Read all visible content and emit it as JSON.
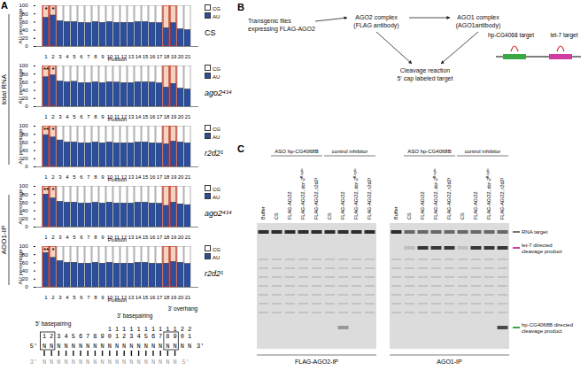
{
  "panel_labels": [
    "A",
    "B",
    "C"
  ],
  "chart_data": [
    {
      "type": "bar",
      "title": "CS",
      "stacked": true,
      "legend": "top-right",
      "x_label": "Position",
      "y_label": "AU percentage",
      "categories": [
        1,
        2,
        3,
        4,
        5,
        6,
        7,
        8,
        9,
        10,
        11,
        12,
        13,
        14,
        15,
        16,
        17,
        18,
        19,
        20,
        21
      ],
      "ylim": [
        0,
        100
      ],
      "yticks": [
        0,
        20,
        40,
        60,
        80,
        100
      ],
      "series": [
        {
          "name": "CG",
          "color": "#ffffff",
          "values": [
            30,
            24,
            38,
            40,
            40,
            42,
            43,
            40,
            42,
            40,
            42,
            42,
            42,
            40,
            40,
            42,
            43,
            55,
            43,
            58,
            60
          ]
        },
        {
          "name": "AU",
          "color": "#2b4f9e",
          "values": [
            70,
            76,
            62,
            60,
            60,
            58,
            57,
            60,
            58,
            60,
            58,
            58,
            58,
            60,
            60,
            58,
            57,
            45,
            57,
            42,
            40
          ]
        }
      ],
      "annotations": [
        {
          "x": 1,
          "y": 92,
          "text": "*"
        },
        {
          "x": 2,
          "y": 92,
          "text": "*"
        }
      ]
    },
    {
      "type": "bar",
      "title": "ago2⁴¹⁴",
      "stacked": true,
      "legend": "top-right",
      "x_label": "Position",
      "y_label": "AU percentage",
      "categories": [
        1,
        2,
        3,
        4,
        5,
        6,
        7,
        8,
        9,
        10,
        11,
        12,
        13,
        14,
        15,
        16,
        17,
        18,
        19,
        20,
        21
      ],
      "ylim": [
        0,
        100
      ],
      "yticks": [
        0,
        20,
        40,
        60,
        80,
        100
      ],
      "series": [
        {
          "name": "CG",
          "color": "#ffffff",
          "values": [
            28,
            23,
            38,
            40,
            39,
            42,
            42,
            40,
            42,
            40,
            41,
            42,
            42,
            40,
            40,
            41,
            43,
            53,
            44,
            56,
            58
          ]
        },
        {
          "name": "AU",
          "color": "#2b4f9e",
          "values": [
            72,
            77,
            62,
            60,
            61,
            58,
            58,
            60,
            58,
            60,
            59,
            58,
            58,
            60,
            60,
            59,
            57,
            47,
            56,
            44,
            42
          ]
        }
      ],
      "annotations": [
        {
          "x": 1,
          "y": 92,
          "text": "**"
        },
        {
          "x": 2,
          "y": 92,
          "text": "*"
        }
      ]
    },
    {
      "type": "bar",
      "title": "r2d2¹",
      "stacked": true,
      "legend": "top-right",
      "x_label": "Position",
      "y_label": "AU percentage",
      "categories": [
        1,
        2,
        3,
        4,
        5,
        6,
        7,
        8,
        9,
        10,
        11,
        12,
        13,
        14,
        15,
        16,
        17,
        18,
        19,
        20,
        21
      ],
      "ylim": [
        0,
        100
      ],
      "yticks": [
        0,
        20,
        40,
        60,
        80,
        100
      ],
      "series": [
        {
          "name": "CG",
          "color": "#ffffff",
          "values": [
            22,
            28,
            35,
            40,
            40,
            42,
            42,
            40,
            42,
            40,
            42,
            42,
            42,
            40,
            40,
            42,
            43,
            45,
            38,
            40,
            42
          ]
        },
        {
          "name": "AU",
          "color": "#2b4f9e",
          "values": [
            78,
            72,
            65,
            60,
            60,
            58,
            58,
            60,
            58,
            60,
            58,
            58,
            58,
            60,
            60,
            58,
            57,
            55,
            62,
            60,
            58
          ]
        }
      ],
      "annotations": [
        {
          "x": 1,
          "y": 92,
          "text": "**"
        },
        {
          "x": 2,
          "y": 92,
          "text": "*"
        }
      ]
    },
    {
      "type": "bar",
      "title": "ago2⁴¹⁴",
      "stacked": true,
      "legend": "top-right",
      "x_label": "Position",
      "y_label": "AU percentage",
      "categories": [
        1,
        2,
        3,
        4,
        5,
        6,
        7,
        8,
        9,
        10,
        11,
        12,
        13,
        14,
        15,
        16,
        17,
        18,
        19,
        20,
        21
      ],
      "ylim": [
        0,
        100
      ],
      "yticks": [
        0,
        20,
        40,
        60,
        80,
        100
      ],
      "series": [
        {
          "name": "CG",
          "color": "#ffffff",
          "values": [
            20,
            30,
            38,
            40,
            40,
            42,
            42,
            40,
            42,
            40,
            42,
            42,
            42,
            40,
            40,
            42,
            43,
            48,
            40,
            44,
            46
          ]
        },
        {
          "name": "AU",
          "color": "#2b4f9e",
          "values": [
            80,
            70,
            62,
            60,
            60,
            58,
            58,
            60,
            58,
            60,
            58,
            58,
            58,
            60,
            60,
            58,
            57,
            52,
            60,
            56,
            54
          ]
        }
      ],
      "annotations": [
        {
          "x": 1,
          "y": 92,
          "text": "**"
        },
        {
          "x": 2,
          "y": 92,
          "text": "*"
        }
      ]
    },
    {
      "type": "bar",
      "title": "r2d2¹",
      "stacked": true,
      "legend": "top-right",
      "x_label": "Position",
      "y_label": "AU percentage",
      "categories": [
        1,
        2,
        3,
        4,
        5,
        6,
        7,
        8,
        9,
        10,
        11,
        12,
        13,
        14,
        15,
        16,
        17,
        18,
        19,
        20,
        21
      ],
      "ylim": [
        0,
        100
      ],
      "yticks": [
        0,
        20,
        40,
        60,
        80,
        100
      ],
      "series": [
        {
          "name": "CG",
          "color": "#ffffff",
          "values": [
            16,
            28,
            36,
            40,
            40,
            42,
            42,
            40,
            42,
            40,
            42,
            42,
            42,
            40,
            40,
            42,
            43,
            42,
            38,
            40,
            43
          ]
        },
        {
          "name": "AU",
          "color": "#2b4f9e",
          "values": [
            84,
            72,
            64,
            60,
            60,
            58,
            58,
            60,
            58,
            60,
            58,
            58,
            58,
            60,
            60,
            58,
            57,
            58,
            62,
            60,
            57
          ]
        }
      ],
      "annotations": [
        {
          "x": 1,
          "y": 92,
          "text": "**"
        },
        {
          "x": 2,
          "y": 92,
          "text": "*"
        }
      ]
    }
  ],
  "row_groups": [
    {
      "label": "total RNA",
      "count": 3
    },
    {
      "label": "AGO1-IP",
      "count": 2
    }
  ],
  "highlighted_positions": [
    1,
    2,
    18,
    19
  ],
  "schematic": {
    "five_prime_label": "5' basepairing",
    "three_prime_label": "3' basepairing",
    "overhang_label": "3' overhang",
    "five_prime": "5'",
    "three_prime": "3'",
    "strand": "NNNNNNNNNNNNNNNNNNNNN",
    "complement": "NNNNNNNNNNNNNNNNNNN"
  },
  "panel_b": {
    "nodes": [
      {
        "lines": [
          "Transgenic flies",
          "expressing FLAG-AGO2"
        ]
      },
      {
        "lines": [
          "AGO2 complex",
          "(FLAG antibody)"
        ]
      },
      {
        "lines": [
          "AGO1 complex",
          "(AGO1antibody)"
        ]
      },
      {
        "lines": [
          "Cleavage reaction",
          "5' cap labeled target"
        ]
      }
    ],
    "targets": [
      {
        "label": "hp-CG4068 target",
        "color": "#3aa845"
      },
      {
        "label": "let-7 target",
        "color": "#d23ca0"
      }
    ]
  },
  "panel_c": {
    "lanes": [
      "Buffer",
      "CS",
      "FLAG-AGO2",
      "FLAG-AGO2, dcr-2ᴿ⁴¹⁶ˣ",
      "FLAG-AGO2, r2d2¹",
      "CS",
      "FLAG-AGO2",
      "FLAG-AGO2, dcr-2ᴿ⁴¹⁶ˣ",
      "FLAG-AGO2, r2d2¹"
    ],
    "lane_groups": [
      {
        "label": "ASO hp-CG4068B",
        "count": 4
      },
      {
        "label": "control inhibitor",
        "count": 4
      }
    ],
    "band_labels": [
      {
        "lines": [
          "RNA target"
        ]
      },
      {
        "lines": [
          "let-7 directed",
          "cleavage product"
        ]
      },
      {
        "lines": [
          "hp-CG4068B directed",
          "cleavage product"
        ]
      }
    ],
    "gels": [
      {
        "label": "FLAG-AGO2-IP",
        "intensities": [
          [
            0.9,
            0.9,
            0.9,
            0.9,
            0.9,
            0.9,
            0.9,
            0.9,
            0.9
          ],
          [
            0,
            0,
            0,
            0,
            0,
            0,
            0,
            0,
            0
          ],
          [
            0,
            0,
            0,
            0,
            0,
            0,
            0.35,
            0,
            0
          ]
        ]
      },
      {
        "label": "AGO1-IP",
        "intensities": [
          [
            0.9,
            0.6,
            0.6,
            0.6,
            0.6,
            0.6,
            0.6,
            0.6,
            0.6
          ],
          [
            0,
            0.15,
            0.85,
            0.85,
            0.85,
            0.15,
            0.85,
            0.85,
            0.85
          ],
          [
            0,
            0,
            0,
            0,
            0,
            0,
            0,
            0,
            0.75
          ]
        ]
      }
    ]
  }
}
